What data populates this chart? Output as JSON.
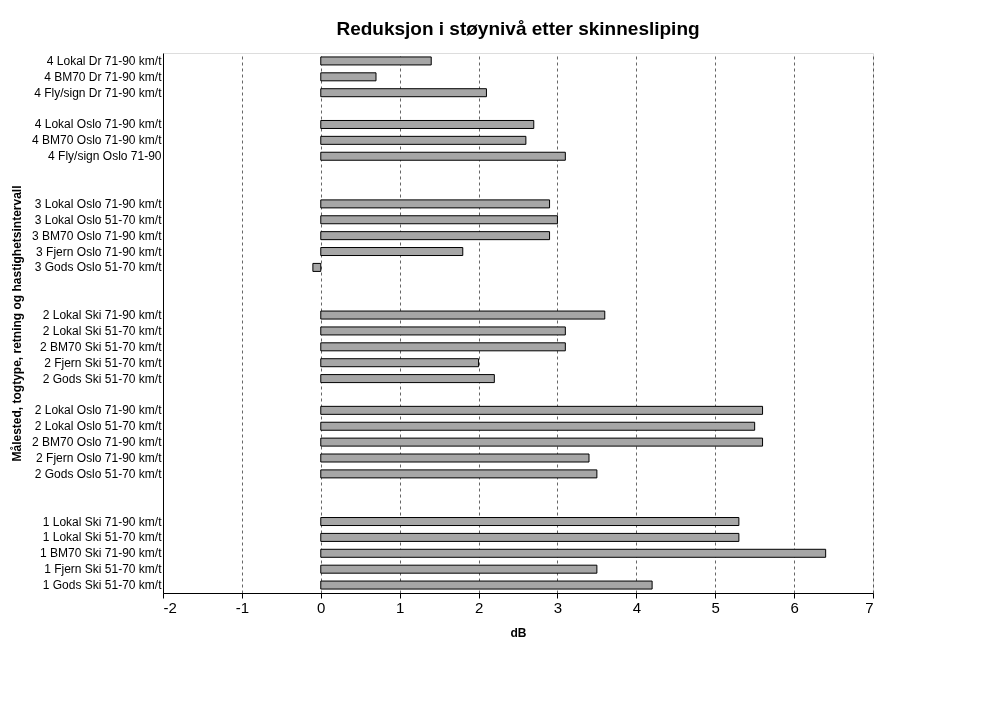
{
  "chart_data": {
    "type": "bar",
    "orientation": "horizontal",
    "title": "Reduksjon i støynivå etter skinnesliping",
    "xlabel": "dB",
    "ylabel": "Målested, togtype, retning og hastighetsintervall",
    "categories": [
      "4 Lokal Dr 71-90 km/t",
      "4 BM70 Dr 71-90 km/t",
      "4 Fly/sign Dr 71-90 km/t",
      null,
      "4 Lokal Oslo 71-90 km/t",
      "4 BM70 Oslo 71-90 km/t",
      "4 Fly/sign Oslo 71-90",
      null,
      null,
      "3 Lokal Oslo 71-90 km/t",
      "3 Lokal Oslo 51-70 km/t",
      "3 BM70 Oslo 71-90 km/t",
      "3 Fjern Oslo 71-90 km/t",
      "3 Gods Oslo 51-70 km/t",
      null,
      null,
      "2 Lokal Ski 71-90 km/t",
      "2 Lokal Ski 51-70 km/t",
      "2 BM70 Ski 51-70 km/t",
      "2 Fjern Ski 51-70 km/t",
      "2 Gods Ski 51-70 km/t",
      null,
      "2 Lokal Oslo 71-90 km/t",
      "2 Lokal Oslo 51-70 km/t",
      "2 BM70 Oslo 71-90 km/t",
      "2 Fjern Oslo 71-90 km/t",
      "2 Gods Oslo 51-70 km/t",
      null,
      null,
      "1 Lokal Ski 71-90 km/t",
      "1 Lokal Ski 51-70 km/t",
      "1 BM70 Ski 71-90 km/t",
      "1 Fjern Ski 51-70 km/t",
      "1 Gods Ski 51-70 km/t"
    ],
    "values": [
      1.4,
      0.7,
      2.1,
      null,
      2.7,
      2.6,
      3.1,
      null,
      null,
      2.9,
      3.0,
      2.9,
      1.8,
      -0.1,
      null,
      null,
      3.6,
      3.1,
      3.1,
      2.0,
      2.2,
      null,
      5.6,
      5.5,
      5.6,
      3.4,
      3.5,
      null,
      null,
      5.3,
      5.3,
      6.4,
      3.5,
      4.2
    ],
    "color": "#a6a6a6",
    "xlim": [
      -2,
      7
    ],
    "xticks": [
      -2,
      -1,
      0,
      1,
      2,
      3,
      4,
      5,
      6,
      7
    ],
    "grid": "x"
  }
}
